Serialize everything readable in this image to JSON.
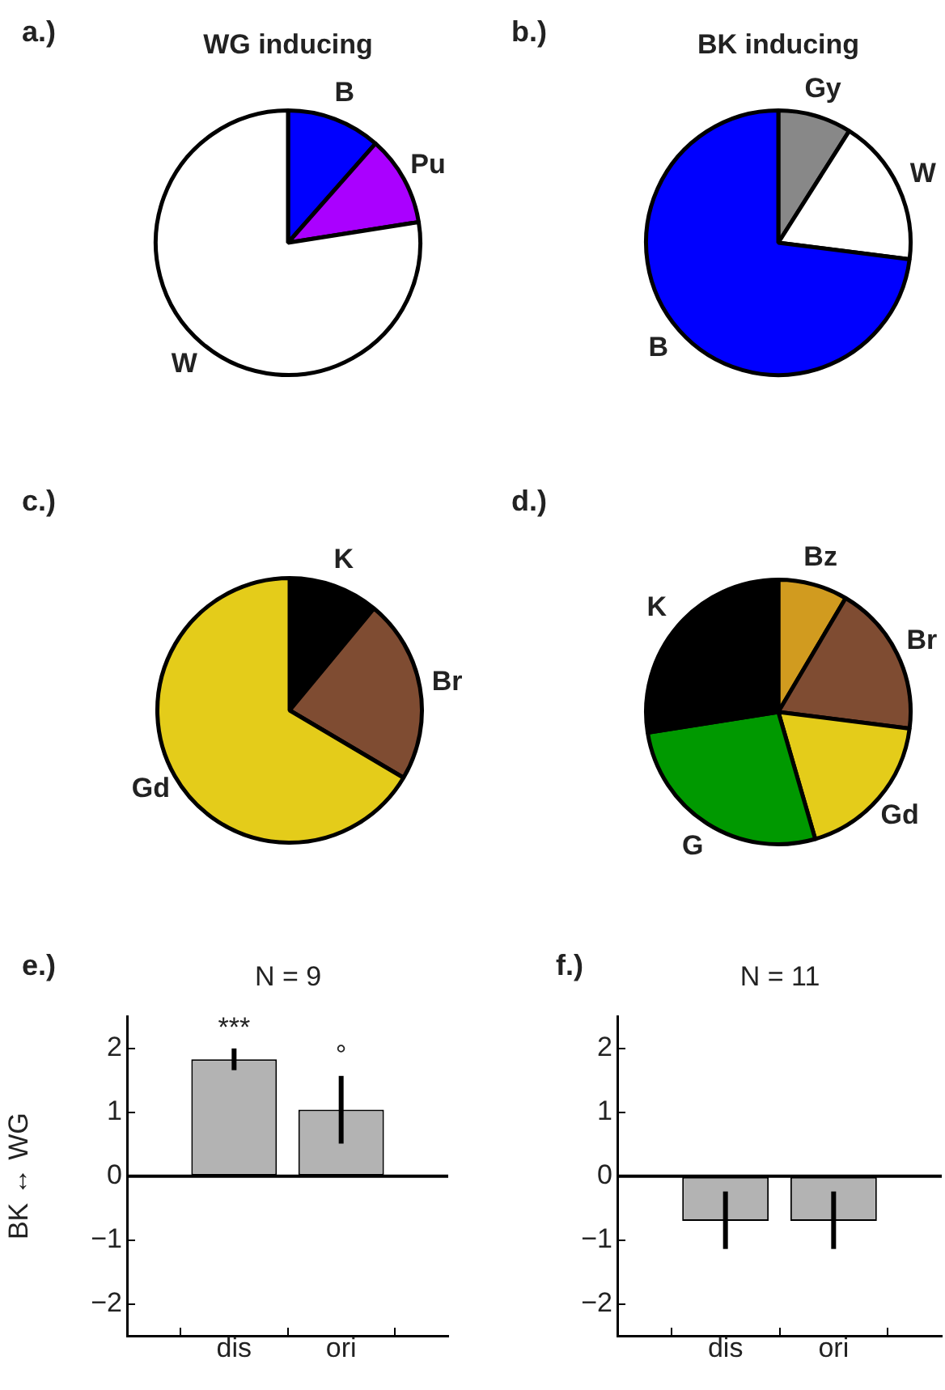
{
  "chart_data": [
    {
      "type": "pie",
      "title": "WG inducing",
      "annotations": [
        "a.)"
      ],
      "categories": [
        "B",
        "Pu",
        "W"
      ],
      "values": [
        11.5,
        11,
        77.5
      ],
      "colors": [
        "#0000ff",
        "#aa00ff",
        "#ffffff"
      ]
    },
    {
      "type": "pie",
      "title": "BK inducing",
      "annotations": [
        "b.)"
      ],
      "categories": [
        "Gy",
        "W",
        "B"
      ],
      "values": [
        9,
        18,
        73
      ],
      "colors": [
        "#888888",
        "#ffffff",
        "#0000ff"
      ]
    },
    {
      "type": "pie",
      "annotations": [
        "c.)"
      ],
      "categories": [
        "K",
        "Br",
        "Gd"
      ],
      "values": [
        11,
        22.5,
        66.5
      ],
      "colors": [
        "#000000",
        "#7f4c32",
        "#e4cc1a"
      ]
    },
    {
      "type": "pie",
      "annotations": [
        "d.)"
      ],
      "categories": [
        "Bz",
        "Br",
        "Gd",
        "G",
        "K"
      ],
      "values": [
        8.5,
        18.5,
        18.5,
        27,
        27.5
      ],
      "colors": [
        "#d19b1f",
        "#7f4c32",
        "#e4cc1a",
        "#009900",
        "#000000"
      ]
    },
    {
      "type": "bar",
      "title": "N = 9",
      "ylabel": "BK ↔ WG",
      "categories": [
        "dis",
        "ori"
      ],
      "values": [
        1.83,
        1.04
      ],
      "errors": [
        [
          1.66,
          2.0
        ],
        [
          0.51,
          1.57
        ]
      ],
      "color": "#b3b3b3",
      "ylim": [
        -2.5,
        2.5
      ],
      "yticks": [
        -2,
        -1,
        0,
        1,
        2
      ],
      "ref_lines": [
        {
          "axis": "y",
          "value": 0
        }
      ],
      "annotations": [
        "e.)",
        "***",
        "°"
      ]
    },
    {
      "type": "bar",
      "title": "N = 11",
      "categories": [
        "dis",
        "ori"
      ],
      "values": [
        -0.7,
        -0.7
      ],
      "errors": [
        [
          -1.14,
          -0.24
        ],
        [
          -1.14,
          -0.24
        ]
      ],
      "color": "#b3b3b3",
      "ylim": [
        -2.5,
        2.5
      ],
      "yticks": [
        -2,
        -1,
        0,
        1,
        2
      ],
      "ref_lines": [
        {
          "axis": "y",
          "value": 0
        }
      ],
      "annotations": [
        "f.)"
      ]
    }
  ]
}
